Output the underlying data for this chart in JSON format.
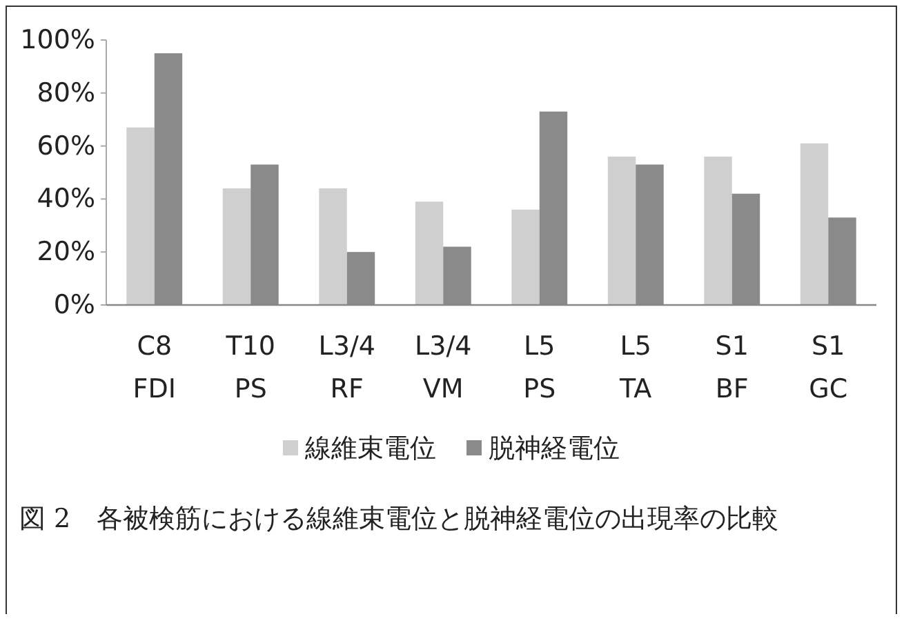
{
  "chart_data": {
    "type": "bar",
    "categories": [
      "C8\nFDI",
      "T10\nPS",
      "L3/4\nRF",
      "L3/4\nVM",
      "L5\nPS",
      "L5\nTA",
      "S1\nBF",
      "S1\nGC"
    ],
    "series": [
      {
        "name": "線維束電位",
        "color": "#cfcfcf",
        "values": [
          67,
          44,
          44,
          39,
          36,
          56,
          56,
          61
        ]
      },
      {
        "name": "脱神経電位",
        "color": "#8a8a8a",
        "values": [
          95,
          53,
          20,
          22,
          73,
          53,
          42,
          33
        ]
      }
    ],
    "ylim": [
      0,
      100
    ],
    "yticks": [
      {
        "value": 0,
        "label": "0%"
      },
      {
        "value": 20,
        "label": "20%"
      },
      {
        "value": 40,
        "label": "40%"
      },
      {
        "value": 60,
        "label": "60%"
      },
      {
        "value": 80,
        "label": "80%"
      },
      {
        "value": 100,
        "label": "100%"
      }
    ],
    "legend": "bottom",
    "grid": false,
    "annotations": [
      "図 2　各被検筋における線維束電位と脱神経電位の出現率の比較"
    ]
  }
}
